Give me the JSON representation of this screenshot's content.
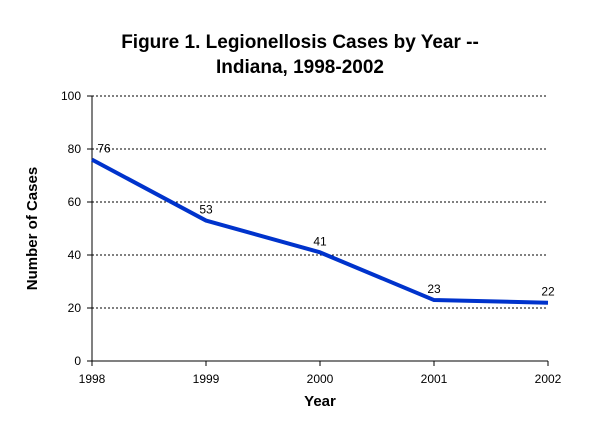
{
  "title_line1": "Figure 1. Legionellosis Cases by Year --",
  "title_line2": "Indiana, 1998-2002",
  "colors": {
    "line": "#0033cc",
    "axis": "#000000",
    "grid": "#000000"
  },
  "chart_data": {
    "type": "line",
    "title": "Figure 1. Legionellosis Cases by Year -- Indiana, 1998-2002",
    "xlabel": "Year",
    "ylabel": "Number of Cases",
    "categories": [
      "1998",
      "1999",
      "2000",
      "2001",
      "2002"
    ],
    "series": [
      {
        "name": "Cases",
        "values": [
          76,
          53,
          41,
          23,
          22
        ]
      }
    ],
    "data_labels": [
      "76",
      "53",
      "41",
      "23",
      "22"
    ],
    "ylim": [
      0,
      100
    ],
    "yticks": [
      0,
      20,
      40,
      60,
      80,
      100
    ],
    "ytick_labels": [
      "0",
      "20",
      "40",
      "60",
      "80",
      "100"
    ],
    "grid": "horizontal dotted",
    "legend": "none"
  }
}
